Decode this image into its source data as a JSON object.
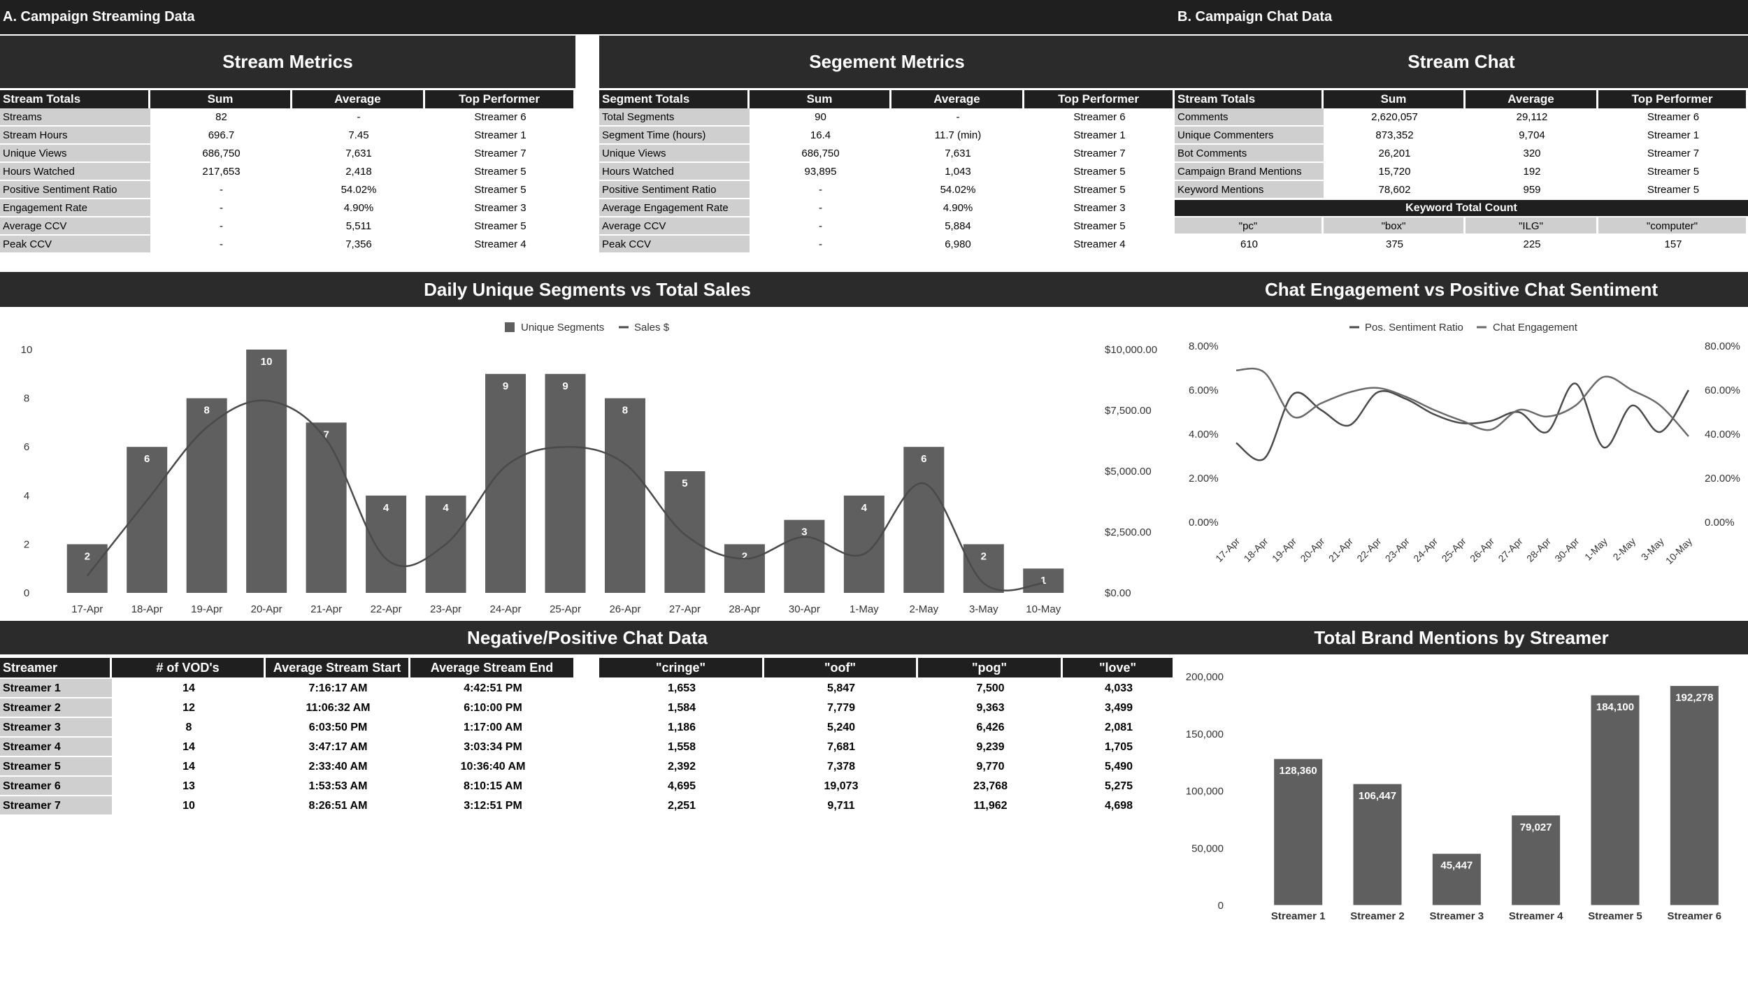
{
  "section_a": "A. Campaign Streaming Data",
  "section_b": "B. Campaign Chat Data",
  "stream_metrics": {
    "title": "Stream Metrics",
    "headers": [
      "Stream Totals",
      "Sum",
      "Average",
      "Top Performer"
    ],
    "rows": [
      [
        "Streams",
        "82",
        "-",
        "Streamer 6"
      ],
      [
        "Stream Hours",
        "696.7",
        "7.45",
        "Streamer 1"
      ],
      [
        "Unique Views",
        "686,750",
        "7,631",
        "Streamer 7"
      ],
      [
        "Hours Watched",
        "217,653",
        "2,418",
        "Streamer 5"
      ],
      [
        "Positive Sentiment Ratio",
        "-",
        "54.02%",
        "Streamer 5"
      ],
      [
        "Engagement Rate",
        "-",
        "4.90%",
        "Streamer 3"
      ],
      [
        "Average CCV",
        "-",
        "5,511",
        "Streamer 5"
      ],
      [
        "Peak CCV",
        "-",
        "7,356",
        "Streamer 4"
      ]
    ]
  },
  "segment_metrics": {
    "title": "Segement Metrics",
    "headers": [
      "Segment Totals",
      "Sum",
      "Average",
      "Top Performer"
    ],
    "rows": [
      [
        "Total Segments",
        "90",
        "-",
        "Streamer 6"
      ],
      [
        "Segment Time (hours)",
        "16.4",
        "11.7 (min)",
        "Streamer 1"
      ],
      [
        "Unique Views",
        "686,750",
        "7,631",
        "Streamer 7"
      ],
      [
        "Hours Watched",
        "93,895",
        "1,043",
        "Streamer 5"
      ],
      [
        "Positive Sentiment Ratio",
        "-",
        "54.02%",
        "Streamer 5"
      ],
      [
        "Average Engagement Rate",
        "-",
        "4.90%",
        "Streamer 3"
      ],
      [
        "Average CCV",
        "-",
        "5,884",
        "Streamer 5"
      ],
      [
        "Peak CCV",
        "-",
        "6,980",
        "Streamer 4"
      ]
    ]
  },
  "stream_chat": {
    "title": "Stream Chat",
    "headers": [
      "Stream Totals",
      "Sum",
      "Average",
      "Top Performer"
    ],
    "rows": [
      [
        "Comments",
        "2,620,057",
        "29,112",
        "Streamer 6"
      ],
      [
        "Unique Commenters",
        "873,352",
        "9,704",
        "Streamer 1"
      ],
      [
        "Bot Comments",
        "26,201",
        "320",
        "Streamer 7"
      ],
      [
        "Campaign Brand Mentions",
        "15,720",
        "192",
        "Streamer 5"
      ],
      [
        "Keyword Mentions",
        "78,602",
        "959",
        "Streamer 5"
      ]
    ],
    "keyword_title": "Keyword Total Count",
    "keywords": [
      "\"pc\"",
      "\"box\"",
      "\"ILG\"",
      "\"computer\""
    ],
    "keyword_counts": [
      "610",
      "375",
      "225",
      "157"
    ]
  },
  "daily_title": "Daily Unique Segments vs Total Sales",
  "engagement_title": "Chat Engagement vs Positive Chat Sentiment",
  "negpos_title": "Negative/Positive Chat Data",
  "brand_title": "Total Brand Mentions by Streamer",
  "streamer_table": {
    "headers": [
      "Streamer",
      "# of VOD's",
      "Average Stream Start",
      "Average Stream End"
    ],
    "rows": [
      [
        "Streamer 1",
        "14",
        "7:16:17 AM",
        "4:42:51 PM"
      ],
      [
        "Streamer 2",
        "12",
        "11:06:32 AM",
        "6:10:00 PM"
      ],
      [
        "Streamer 3",
        "8",
        "6:03:50 PM",
        "1:17:00 AM"
      ],
      [
        "Streamer 4",
        "14",
        "3:47:17 AM",
        "3:03:34 PM"
      ],
      [
        "Streamer 5",
        "14",
        "2:33:40 AM",
        "10:36:40 AM"
      ],
      [
        "Streamer 6",
        "13",
        "1:53:53 AM",
        "8:10:15 AM"
      ],
      [
        "Streamer 7",
        "10",
        "8:26:51 AM",
        "3:12:51 PM"
      ]
    ]
  },
  "word_table": {
    "headers": [
      "\"cringe\"",
      "\"oof\"",
      "\"pog\"",
      "\"love\""
    ],
    "rows": [
      [
        "1,653",
        "5,847",
        "7,500",
        "4,033"
      ],
      [
        "1,584",
        "7,779",
        "9,363",
        "3,499"
      ],
      [
        "1,186",
        "5,240",
        "6,426",
        "2,081"
      ],
      [
        "1,558",
        "7,681",
        "9,239",
        "1,705"
      ],
      [
        "2,392",
        "7,378",
        "9,770",
        "5,490"
      ],
      [
        "4,695",
        "19,073",
        "23,768",
        "5,275"
      ],
      [
        "2,251",
        "9,711",
        "11,962",
        "4,698"
      ]
    ]
  },
  "chart_data": [
    {
      "type": "bar",
      "title": "Daily Unique Segments vs Total Sales",
      "categories": [
        "17-Apr",
        "18-Apr",
        "19-Apr",
        "20-Apr",
        "21-Apr",
        "22-Apr",
        "23-Apr",
        "24-Apr",
        "25-Apr",
        "26-Apr",
        "27-Apr",
        "28-Apr",
        "30-Apr",
        "1-May",
        "2-May",
        "3-May",
        "10-May"
      ],
      "series": [
        {
          "name": "Unique Segments",
          "type": "bar",
          "axis": "left",
          "values": [
            2,
            6,
            8,
            10,
            7,
            4,
            4,
            9,
            9,
            8,
            5,
            2,
            3,
            4,
            6,
            2,
            1
          ]
        },
        {
          "name": "Sales $",
          "type": "line",
          "axis": "right",
          "values": [
            700,
            3800,
            6800,
            7900,
            6300,
            1400,
            2000,
            5200,
            6000,
            5300,
            2400,
            1400,
            2300,
            1600,
            4500,
            400,
            400
          ]
        }
      ],
      "ylim": [
        0,
        10
      ],
      "yticks": [
        "0",
        "2",
        "4",
        "6",
        "8",
        "10"
      ],
      "y2lim": [
        0,
        10000
      ],
      "y2ticks": [
        "$0.00",
        "$2,500.00",
        "$5,000.00",
        "$7,500.00",
        "$10,000.00"
      ],
      "legend": "top-center",
      "grid": false
    },
    {
      "type": "line",
      "title": "Chat Engagement vs Positive Chat Sentiment",
      "categories": [
        "17-Apr",
        "18-Apr",
        "19-Apr",
        "20-Apr",
        "21-Apr",
        "22-Apr",
        "23-Apr",
        "24-Apr",
        "25-Apr",
        "26-Apr",
        "27-Apr",
        "28-Apr",
        "30-Apr",
        "1-May",
        "2-May",
        "3-May",
        "10-May"
      ],
      "series": [
        {
          "name": "Pos. Sentiment Ratio",
          "axis": "left",
          "values": [
            3.6,
            2.9,
            5.8,
            5.1,
            4.4,
            5.9,
            5.6,
            4.9,
            4.5,
            4.6,
            5.0,
            4.1,
            6.3,
            3.4,
            5.3,
            4.1,
            6.0
          ]
        },
        {
          "name": "Chat Engagement",
          "axis": "right",
          "values": [
            69,
            68,
            48,
            54,
            59,
            61,
            57,
            51,
            46,
            42,
            51,
            48,
            53,
            66,
            60,
            53,
            39
          ]
        }
      ],
      "ylim": [
        0,
        8
      ],
      "yticks": [
        "0.00%",
        "2.00%",
        "4.00%",
        "6.00%",
        "8.00%"
      ],
      "y2lim": [
        0,
        80
      ],
      "y2ticks": [
        "0.00%",
        "20.00%",
        "40.00%",
        "60.00%",
        "80.00%"
      ],
      "legend": "top-center",
      "grid": false
    },
    {
      "type": "bar",
      "title": "Total Brand Mentions by Streamer",
      "categories": [
        "Streamer 1",
        "Streamer 2",
        "Streamer 3",
        "Streamer 4",
        "Streamer 5",
        "Streamer 6"
      ],
      "values": [
        128360,
        106447,
        45447,
        79027,
        184100,
        192278
      ],
      "labels": [
        "128,360",
        "106,447",
        "45,447",
        "79,027",
        "184,100",
        "192,278"
      ],
      "ylim": [
        0,
        200000
      ],
      "yticks": [
        "0",
        "50,000",
        "100,000",
        "150,000",
        "200,000"
      ],
      "grid": false
    }
  ],
  "colors": {
    "bar": "#5f5f5f",
    "line": "#4a4a4a",
    "header": "#1f1f1f",
    "band": "#2b2b2b",
    "label_bg": "#cfcfcf"
  }
}
